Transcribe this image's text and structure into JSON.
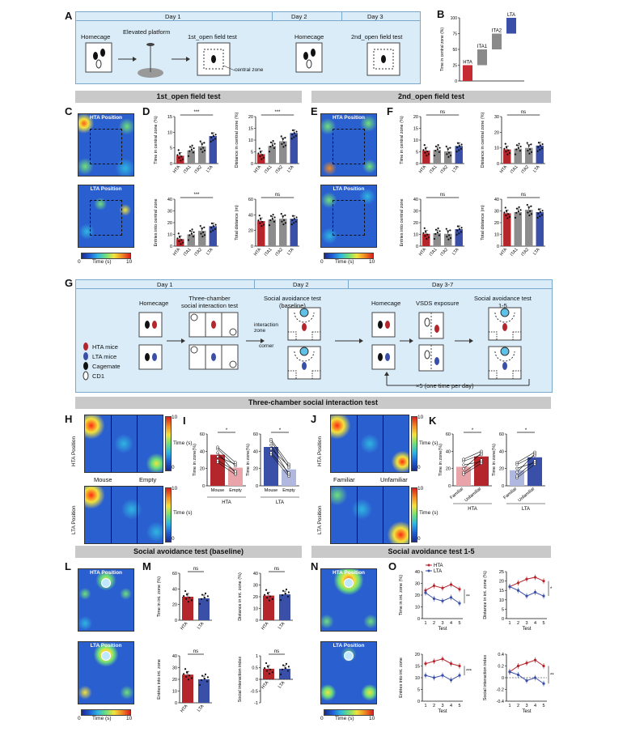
{
  "panels": {
    "A": "A",
    "B": "B",
    "C": "C",
    "D": "D",
    "E": "E",
    "F": "F",
    "G": "G",
    "H": "H",
    "I": "I",
    "J": "J",
    "K": "K",
    "L": "L",
    "M": "M",
    "N": "N",
    "O": "O"
  },
  "panelA": {
    "day1": "Day 1",
    "day2": "Day 2",
    "day3": "Day 3",
    "homecage": "Homecage",
    "elevated": "Elevated platform",
    "open1": "1st_open field test",
    "central_zone": "central zone",
    "homecage2": "Homecage",
    "open2": "2nd_open field test"
  },
  "section_titles": {
    "first_open": "1st_open field test",
    "second_open": "2nd_open field test",
    "three_chamber": "Three-chamber social interaction test",
    "sa_baseline": "Social avoidance test (baseline)",
    "sa_1_5": "Social avoidance test 1-5"
  },
  "heatmaps": {
    "hta_position": "HTA Position",
    "lta_position": "LTA Position",
    "time_label": "Time (s)",
    "min": "0",
    "max": "10"
  },
  "panelG": {
    "day1": "Day 1",
    "day2": "Day 2",
    "day37": "Day 3-7",
    "homecage": "Homecage",
    "three_chamber": "Three-chamber\nsocial interaction test",
    "sa_baseline": "Social avoidance test\n(baseline)",
    "homecage2": "Homecage",
    "vsds": "VSDS exposure",
    "sa15": "Social avoidance test\n1-5",
    "interaction_zone": "interaction\nzone",
    "corner": "corner",
    "legend": [
      "HTA mice",
      "LTA mice",
      "Cagemate",
      "CD1"
    ],
    "repeat": "×5 (one time per day)"
  },
  "panelH": {
    "mouse": "Mouse",
    "empty": "Empty"
  },
  "panelJ": {
    "familiar": "Familiar",
    "unfamiliar": "Unfamiliar"
  },
  "colors": {
    "hta": "#b5252c",
    "lta": "#3a4fa8",
    "ita": "#8c8c8c",
    "box": "#d9ecf8",
    "section": "#c9c9c9"
  },
  "chart_data": [
    {
      "id": "B",
      "type": "bar",
      "categories": [
        "HTA",
        "ITA1",
        "ITA2",
        "LTA"
      ],
      "ylabel": "Time in central zone (%)",
      "ylim": [
        0,
        100
      ],
      "ranges": [
        [
          0,
          25
        ],
        [
          25,
          50
        ],
        [
          50,
          75
        ],
        [
          75,
          100
        ]
      ]
    },
    {
      "id": "D1",
      "type": "bar",
      "categories": [
        "HTA",
        "ITA1",
        "ITA2",
        "LTA"
      ],
      "values": [
        2.5,
        4.2,
        5.5,
        8.8
      ],
      "ylabel": "Time in central zone (%)",
      "ylim": [
        0,
        15
      ],
      "yticks": [
        0,
        5,
        10,
        15
      ],
      "sig": "***"
    },
    {
      "id": "D2",
      "type": "bar",
      "categories": [
        "HTA",
        "ITA1",
        "ITA2",
        "LTA"
      ],
      "values": [
        4,
        7.5,
        9.5,
        13
      ],
      "ylabel": "Distance in central zone (%)",
      "ylim": [
        0,
        20
      ],
      "yticks": [
        0,
        5,
        10,
        15,
        20
      ],
      "sig": "***"
    },
    {
      "id": "D3",
      "type": "bar",
      "categories": [
        "HTA",
        "ITA1",
        "ITA2",
        "LTA"
      ],
      "values": [
        6,
        10,
        13,
        17
      ],
      "ylabel": "Entries into central zone",
      "ylim": [
        0,
        40
      ],
      "yticks": [
        0,
        10,
        20,
        30,
        40
      ],
      "sig": "***"
    },
    {
      "id": "D4",
      "type": "bar",
      "categories": [
        "HTA",
        "ITA1",
        "ITA2",
        "LTA"
      ],
      "values": [
        32,
        34,
        35,
        35
      ],
      "ylabel": "Total distance (m)",
      "ylim": [
        0,
        60
      ],
      "yticks": [
        0,
        20,
        40,
        60
      ],
      "sig": "ns"
    },
    {
      "id": "F1",
      "type": "bar",
      "categories": [
        "HTA",
        "ITA1",
        "ITA2",
        "LTA"
      ],
      "values": [
        5.5,
        5.8,
        5.2,
        7.5
      ],
      "ylabel": "Time in central zone (%)",
      "ylim": [
        0,
        20
      ],
      "yticks": [
        0,
        5,
        10,
        15,
        20
      ],
      "sig": "ns"
    },
    {
      "id": "F2",
      "type": "bar",
      "categories": [
        "HTA",
        "ITA1",
        "ITA2",
        "LTA"
      ],
      "values": [
        9,
        9.5,
        10,
        11.5
      ],
      "ylabel": "Distance in central zone (%)",
      "ylim": [
        0,
        30
      ],
      "yticks": [
        0,
        10,
        20,
        30
      ],
      "sig": "ns"
    },
    {
      "id": "F3",
      "type": "bar",
      "categories": [
        "HTA",
        "ITA1",
        "ITA2",
        "LTA"
      ],
      "values": [
        10.5,
        11,
        10.5,
        14.5
      ],
      "ylabel": "Entries into central zone",
      "ylim": [
        0,
        40
      ],
      "yticks": [
        0,
        10,
        20,
        30,
        40
      ],
      "sig": "ns"
    },
    {
      "id": "F4",
      "type": "bar",
      "categories": [
        "HTA",
        "ITA1",
        "ITA2",
        "LTA"
      ],
      "values": [
        28,
        29,
        31,
        29
      ],
      "ylabel": "Total distance (m)",
      "ylim": [
        0,
        40
      ],
      "yticks": [
        0,
        10,
        20,
        30,
        40
      ],
      "sig": "ns"
    },
    {
      "id": "I",
      "type": "bar",
      "groups": [
        "HTA",
        "LTA"
      ],
      "categories": [
        "Mouse",
        "Empty"
      ],
      "series": [
        {
          "name": "HTA",
          "values": [
            36,
            21
          ]
        },
        {
          "name": "LTA",
          "values": [
            45,
            19
          ]
        }
      ],
      "ylabel": "Time in zone(%)",
      "ylim": [
        0,
        60
      ],
      "yticks": [
        0,
        20,
        40,
        60
      ],
      "sig": [
        "*",
        "*"
      ]
    },
    {
      "id": "K",
      "type": "bar",
      "groups": [
        "HTA",
        "LTA"
      ],
      "categories": [
        "Familiar",
        "Unfamiliar"
      ],
      "series": [
        {
          "name": "HTA",
          "values": [
            22,
            34
          ]
        },
        {
          "name": "LTA",
          "values": [
            18,
            33
          ]
        }
      ],
      "ylabel": "Time in zone(%)",
      "ylim": [
        0,
        60
      ],
      "yticks": [
        0,
        20,
        40,
        60
      ],
      "sig": [
        "*",
        "*"
      ]
    },
    {
      "id": "M1",
      "type": "bar",
      "categories": [
        "HTA",
        "LTA"
      ],
      "values": [
        30,
        28
      ],
      "ylabel": "Time in int. zone (%)",
      "ylim": [
        0,
        60
      ],
      "yticks": [
        0,
        20,
        40,
        60
      ],
      "sig": "ns"
    },
    {
      "id": "M2",
      "type": "bar",
      "categories": [
        "HTA",
        "LTA"
      ],
      "values": [
        21,
        22
      ],
      "ylabel": "Distance in int. zone (%)",
      "ylim": [
        0,
        40
      ],
      "yticks": [
        0,
        10,
        20,
        30,
        40
      ],
      "sig": "ns"
    },
    {
      "id": "M3",
      "type": "bar",
      "categories": [
        "HTA",
        "LTA"
      ],
      "values": [
        24,
        20
      ],
      "ylabel": "Entries into int. zone",
      "ylim": [
        0,
        40
      ],
      "yticks": [
        0,
        10,
        20,
        30,
        40
      ],
      "sig": "ns"
    },
    {
      "id": "M4",
      "type": "bar",
      "categories": [
        "HTA",
        "LTA"
      ],
      "values": [
        0.45,
        0.45
      ],
      "ylabel": "Social interaction index",
      "ylim": [
        -1.0,
        1.0
      ],
      "yticks": [
        -1.0,
        -0.5,
        0.0,
        0.5,
        1.0
      ],
      "sig": "ns"
    },
    {
      "id": "O1",
      "type": "line",
      "x": [
        1,
        2,
        3,
        4,
        5
      ],
      "series": [
        {
          "name": "HTA",
          "values": [
            24,
            28,
            26,
            29,
            25
          ]
        },
        {
          "name": "LTA",
          "values": [
            22,
            17,
            15,
            18,
            13
          ]
        }
      ],
      "xlabel": "Test",
      "ylabel": "Time in int. zone (%)",
      "ylim": [
        0,
        40
      ],
      "yticks": [
        0,
        10,
        20,
        30,
        40
      ],
      "sig": "**",
      "legend": [
        "HTA",
        "LTA"
      ]
    },
    {
      "id": "O2",
      "type": "line",
      "x": [
        1,
        2,
        3,
        4,
        5
      ],
      "series": [
        {
          "name": "HTA",
          "values": [
            17,
            19,
            21,
            22,
            20
          ]
        },
        {
          "name": "LTA",
          "values": [
            17,
            15,
            12,
            14,
            12
          ]
        }
      ],
      "xlabel": "Test",
      "ylabel": "Distance in int. zone (%)",
      "ylim": [
        0,
        25
      ],
      "yticks": [
        0,
        5,
        10,
        15,
        20,
        25
      ],
      "sig": "*"
    },
    {
      "id": "O3",
      "type": "line",
      "x": [
        1,
        2,
        3,
        4,
        5
      ],
      "series": [
        {
          "name": "HTA",
          "values": [
            16,
            17,
            18,
            16,
            15
          ]
        },
        {
          "name": "LTA",
          "values": [
            11,
            10,
            11,
            9,
            11
          ]
        }
      ],
      "xlabel": "Test",
      "ylabel": "Entries into int. zone",
      "ylim": [
        0,
        20
      ],
      "yticks": [
        0,
        5,
        10,
        15,
        20
      ],
      "sig": "***"
    },
    {
      "id": "O4",
      "type": "line",
      "x": [
        1,
        2,
        3,
        4,
        5
      ],
      "series": [
        {
          "name": "HTA",
          "values": [
            0.1,
            0.2,
            0.25,
            0.3,
            0.2
          ]
        },
        {
          "name": "LTA",
          "values": [
            0.1,
            0.05,
            -0.05,
            0.0,
            -0.1
          ]
        }
      ],
      "xlabel": "Test",
      "ylabel": "Social interaction index",
      "ylim": [
        -0.4,
        0.4
      ],
      "yticks": [
        -0.4,
        -0.2,
        0.0,
        0.2,
        0.4
      ],
      "sig": "**"
    }
  ]
}
